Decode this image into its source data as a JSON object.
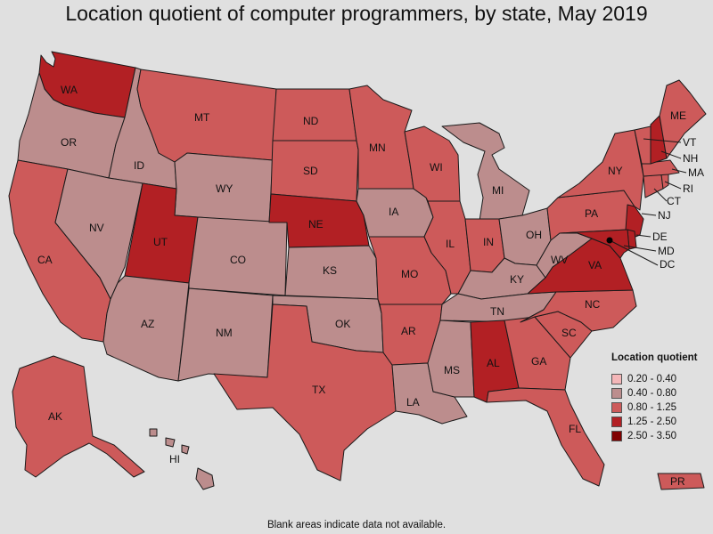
{
  "title": "Location quotient of computer programmers, by state, May 2019",
  "footnote": "Blank areas indicate data not available.",
  "legend": {
    "title": "Location quotient",
    "items": [
      {
        "label": "0.20 - 0.40",
        "color": "#f4b6b8"
      },
      {
        "label": "0.40 - 0.80",
        "color": "#bc8d8d"
      },
      {
        "label": "0.80 - 1.25",
        "color": "#cd5a5a"
      },
      {
        "label": "1.25 - 2.50",
        "color": "#b22024"
      },
      {
        "label": "2.50 - 3.50",
        "color": "#800000"
      }
    ]
  },
  "colors": {
    "background": "#e0e0e0",
    "c040_080": "#bc8d8d",
    "c080_125": "#cd5a5a",
    "c125_250": "#b22024",
    "c250_350": "#800000"
  },
  "states": {
    "WA": {
      "label": "WA",
      "range": "1.25 - 2.50"
    },
    "OR": {
      "label": "OR",
      "range": "0.40 - 0.80"
    },
    "CA": {
      "label": "CA",
      "range": "0.80 - 1.25"
    },
    "ID": {
      "label": "ID",
      "range": "0.40 - 0.80"
    },
    "NV": {
      "label": "NV",
      "range": "0.40 - 0.80"
    },
    "MT": {
      "label": "MT",
      "range": "0.80 - 1.25"
    },
    "WY": {
      "label": "WY",
      "range": "0.40 - 0.80"
    },
    "UT": {
      "label": "UT",
      "range": "1.25 - 2.50"
    },
    "AZ": {
      "label": "AZ",
      "range": "0.40 - 0.80"
    },
    "CO": {
      "label": "CO",
      "range": "0.40 - 0.80"
    },
    "NM": {
      "label": "NM",
      "range": "0.40 - 0.80"
    },
    "ND": {
      "label": "ND",
      "range": "0.80 - 1.25"
    },
    "SD": {
      "label": "SD",
      "range": "0.80 - 1.25"
    },
    "NE": {
      "label": "NE",
      "range": "1.25 - 2.50"
    },
    "KS": {
      "label": "KS",
      "range": "0.40 - 0.80"
    },
    "OK": {
      "label": "OK",
      "range": "0.40 - 0.80"
    },
    "TX": {
      "label": "TX",
      "range": "0.80 - 1.25"
    },
    "MN": {
      "label": "MN",
      "range": "0.80 - 1.25"
    },
    "IA": {
      "label": "IA",
      "range": "0.40 - 0.80"
    },
    "MO": {
      "label": "MO",
      "range": "0.80 - 1.25"
    },
    "AR": {
      "label": "AR",
      "range": "0.80 - 1.25"
    },
    "LA": {
      "label": "LA",
      "range": "0.40 - 0.80"
    },
    "WI": {
      "label": "WI",
      "range": "0.80 - 1.25"
    },
    "IL": {
      "label": "IL",
      "range": "0.80 - 1.25"
    },
    "MI": {
      "label": "MI",
      "range": "0.40 - 0.80"
    },
    "IN": {
      "label": "IN",
      "range": "0.80 - 1.25"
    },
    "OH": {
      "label": "OH",
      "range": "0.40 - 0.80"
    },
    "KY": {
      "label": "KY",
      "range": "0.40 - 0.80"
    },
    "TN": {
      "label": "TN",
      "range": "0.40 - 0.80"
    },
    "MS": {
      "label": "MS",
      "range": "0.40 - 0.80"
    },
    "AL": {
      "label": "AL",
      "range": "1.25 - 2.50"
    },
    "GA": {
      "label": "GA",
      "range": "0.80 - 1.25"
    },
    "FL": {
      "label": "FL",
      "range": "0.80 - 1.25"
    },
    "SC": {
      "label": "SC",
      "range": "0.80 - 1.25"
    },
    "NC": {
      "label": "NC",
      "range": "0.80 - 1.25"
    },
    "VA": {
      "label": "VA",
      "range": "1.25 - 2.50"
    },
    "WV": {
      "label": "WV",
      "range": "0.40 - 0.80"
    },
    "PA": {
      "label": "PA",
      "range": "0.80 - 1.25"
    },
    "NY": {
      "label": "NY",
      "range": "0.80 - 1.25"
    },
    "NJ": {
      "label": "NJ",
      "range": "1.25 - 2.50"
    },
    "DE": {
      "label": "DE",
      "range": "1.25 - 2.50"
    },
    "MD": {
      "label": "MD",
      "range": "1.25 - 2.50"
    },
    "DC": {
      "label": "DC",
      "range": "2.50 - 3.50"
    },
    "CT": {
      "label": "CT",
      "range": "0.80 - 1.25"
    },
    "RI": {
      "label": "RI",
      "range": "0.80 - 1.25"
    },
    "MA": {
      "label": "MA",
      "range": "0.80 - 1.25"
    },
    "VT": {
      "label": "VT",
      "range": "0.80 - 1.25"
    },
    "NH": {
      "label": "NH",
      "range": "1.25 - 2.50"
    },
    "ME": {
      "label": "ME",
      "range": "0.80 - 1.25"
    },
    "AK": {
      "label": "AK",
      "range": "0.80 - 1.25"
    },
    "HI": {
      "label": "HI",
      "range": "0.40 - 0.80"
    },
    "PR": {
      "label": "PR",
      "range": "0.80 - 1.25"
    }
  }
}
